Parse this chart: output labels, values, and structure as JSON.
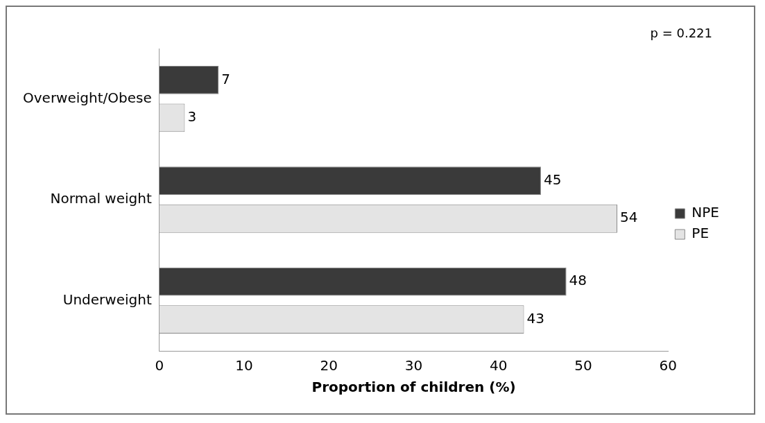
{
  "chart_data": {
    "type": "bar",
    "orientation": "horizontal",
    "xlabel": "Proportion of children (%)",
    "categories": [
      "Overweight/Obese",
      "Normal weight",
      "Underweight"
    ],
    "series": [
      {
        "name": "NPE",
        "color": "#3a3a3a",
        "values": [
          7,
          45,
          48
        ]
      },
      {
        "name": "PE",
        "color": "#e4e4e4",
        "values": [
          3,
          54,
          43
        ]
      }
    ],
    "xlim": [
      0,
      60
    ],
    "xticks": [
      0,
      10,
      20,
      30,
      40,
      50,
      60
    ],
    "data_labels": true,
    "grid": false,
    "legend": "right",
    "annotations": [
      "p = 0.221"
    ]
  }
}
